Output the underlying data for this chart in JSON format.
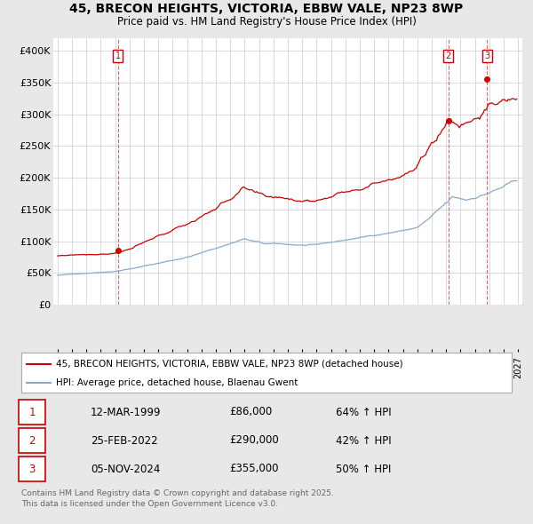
{
  "title_line1": "45, BRECON HEIGHTS, VICTORIA, EBBW VALE, NP23 8WP",
  "title_line2": "Price paid vs. HM Land Registry's House Price Index (HPI)",
  "ylim": [
    0,
    420000
  ],
  "yticks": [
    0,
    50000,
    100000,
    150000,
    200000,
    250000,
    300000,
    350000,
    400000
  ],
  "ytick_labels": [
    "£0",
    "£50K",
    "£100K",
    "£150K",
    "£200K",
    "£250K",
    "£300K",
    "£350K",
    "£400K"
  ],
  "legend_entries": [
    "45, BRECON HEIGHTS, VICTORIA, EBBW VALE, NP23 8WP (detached house)",
    "HPI: Average price, detached house, Blaenau Gwent"
  ],
  "legend_colors": [
    "#cc0000",
    "#88aacc"
  ],
  "transactions": [
    {
      "label": "1",
      "date": "12-MAR-1999",
      "price": 86000,
      "pct": "64% ↑ HPI",
      "year": 1999.2
    },
    {
      "label": "2",
      "date": "25-FEB-2022",
      "price": 290000,
      "pct": "42% ↑ HPI",
      "year": 2022.15
    },
    {
      "label": "3",
      "date": "05-NOV-2024",
      "price": 355000,
      "pct": "50% ↑ HPI",
      "year": 2024.85
    }
  ],
  "footer_line1": "Contains HM Land Registry data © Crown copyright and database right 2025.",
  "footer_line2": "This data is licensed under the Open Government Licence v3.0.",
  "bg_color": "#e8e8e8",
  "plot_bg_color": "#ffffff",
  "grid_color": "#cccccc"
}
